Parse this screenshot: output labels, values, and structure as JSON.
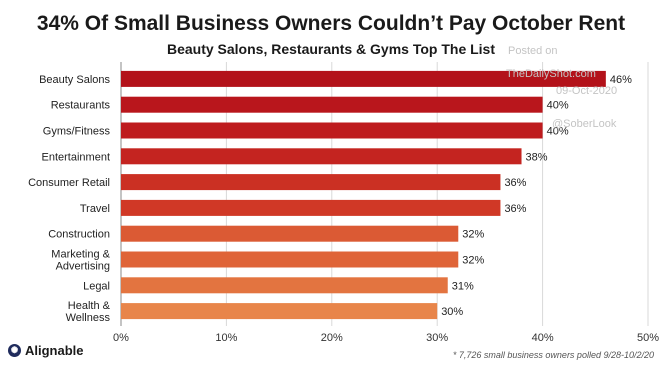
{
  "chart_data": {
    "type": "bar",
    "orientation": "horizontal",
    "title": "34% Of Small Business Owners Couldn’t Pay October Rent",
    "subtitle": "Beauty Salons, Restaurants & Gyms Top The List",
    "categories": [
      "Beauty Salons",
      "Restaurants",
      "Gyms/Fitness",
      "Entertainment",
      "Consumer Retail",
      "Travel",
      "Construction",
      "Marketing & Advertising",
      "Legal",
      "Health & Wellness"
    ],
    "values": [
      46,
      40,
      40,
      38,
      36,
      36,
      32,
      32,
      31,
      30
    ],
    "data_labels": [
      "46%",
      "40%",
      "40%",
      "38%",
      "36%",
      "36%",
      "32%",
      "32%",
      "31%",
      "30%"
    ],
    "xlim": [
      0,
      50
    ],
    "xticks": [
      "0%",
      "10%",
      "20%",
      "30%",
      "40%",
      "50%"
    ],
    "grid": "vertical",
    "bar_colors": [
      "#b3121a",
      "#b9161c",
      "#be1b1e",
      "#c42420",
      "#cb3023",
      "#d03826",
      "#db5a34",
      "#df6438",
      "#e37440",
      "#e8854a"
    ],
    "footnote": "* 7,726 small business owners polled 9/28-10/2/20"
  },
  "brand": {
    "name": "Alignable",
    "icon": "alignable-logo-icon"
  },
  "watermark": {
    "posted_on": "Posted on",
    "site": "TheDailyShot.com",
    "date": "09-Oct-2020",
    "handle": "@SoberLook"
  }
}
